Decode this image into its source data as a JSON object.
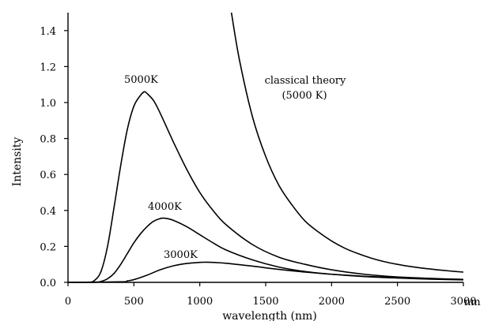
{
  "chart_data": {
    "type": "line",
    "xlabel": "wavelength (nm)",
    "ylabel": "Intensity",
    "x_unit_label": "nm",
    "xlim": [
      0,
      3000
    ],
    "ylim": [
      0,
      1.5
    ],
    "x_ticks": [
      0,
      500,
      1000,
      1500,
      2000,
      2500,
      3000
    ],
    "x_tick_labels": [
      "0",
      "500",
      "1000",
      "1500",
      "2000",
      "2500",
      "3000"
    ],
    "y_ticks": [
      0,
      0.2,
      0.4,
      0.6,
      0.8,
      1.0,
      1.2,
      1.4
    ],
    "y_tick_labels": [
      "0.0",
      "0.2",
      "0.4",
      "0.6",
      "0.8",
      "1.0",
      "1.2",
      "1.4"
    ],
    "grid": false,
    "series": [
      {
        "name": "5000K",
        "x": [
          0,
          150,
          200,
          250,
          300,
          350,
          400,
          450,
          500,
          550,
          580,
          600,
          650,
          700,
          800,
          900,
          1000,
          1100,
          1200,
          1400,
          1600,
          1800,
          2000,
          2250,
          2500,
          2750,
          3000
        ],
        "y": [
          0,
          0,
          0.01,
          0.06,
          0.2,
          0.42,
          0.65,
          0.85,
          0.98,
          1.04,
          1.06,
          1.05,
          1.01,
          0.94,
          0.78,
          0.63,
          0.5,
          0.4,
          0.32,
          0.21,
          0.14,
          0.1,
          0.07,
          0.045,
          0.03,
          0.022,
          0.016
        ]
      },
      {
        "name": "4000K",
        "x": [
          0,
          200,
          250,
          300,
          350,
          400,
          450,
          500,
          550,
          600,
          650,
          700,
          725,
          750,
          800,
          900,
          1000,
          1100,
          1200,
          1400,
          1600,
          1800,
          2000,
          2250,
          2500,
          2750,
          3000
        ],
        "y": [
          0,
          0,
          0.005,
          0.02,
          0.05,
          0.1,
          0.16,
          0.22,
          0.27,
          0.31,
          0.34,
          0.355,
          0.357,
          0.355,
          0.345,
          0.31,
          0.265,
          0.22,
          0.18,
          0.125,
          0.085,
          0.06,
          0.045,
          0.032,
          0.024,
          0.018,
          0.014
        ]
      },
      {
        "name": "3000K",
        "x": [
          0,
          400,
          450,
          500,
          600,
          700,
          800,
          900,
          1000,
          1050,
          1100,
          1200,
          1400,
          1600,
          1800,
          2000,
          2250,
          2500,
          2750,
          3000
        ],
        "y": [
          0,
          0.003,
          0.008,
          0.015,
          0.04,
          0.07,
          0.092,
          0.105,
          0.111,
          0.112,
          0.111,
          0.106,
          0.09,
          0.072,
          0.057,
          0.045,
          0.034,
          0.026,
          0.02,
          0.016
        ]
      },
      {
        "name": "classical theory (5000 K)",
        "x": [
          1240,
          1300,
          1400,
          1500,
          1600,
          1700,
          1800,
          1900,
          2000,
          2100,
          2200,
          2300,
          2400,
          2500,
          2600,
          2700,
          2800,
          2900,
          3000
        ],
        "y": [
          1.5,
          1.24,
          0.92,
          0.7,
          0.54,
          0.43,
          0.34,
          0.28,
          0.23,
          0.19,
          0.16,
          0.135,
          0.115,
          0.1,
          0.088,
          0.078,
          0.07,
          0.063,
          0.057
        ]
      }
    ],
    "annotations": {
      "label_5000": "5000K",
      "label_4000": "4000K",
      "label_3000": "3000K",
      "classical_line1": "classical theory",
      "classical_line2": "(5000 K)"
    }
  }
}
